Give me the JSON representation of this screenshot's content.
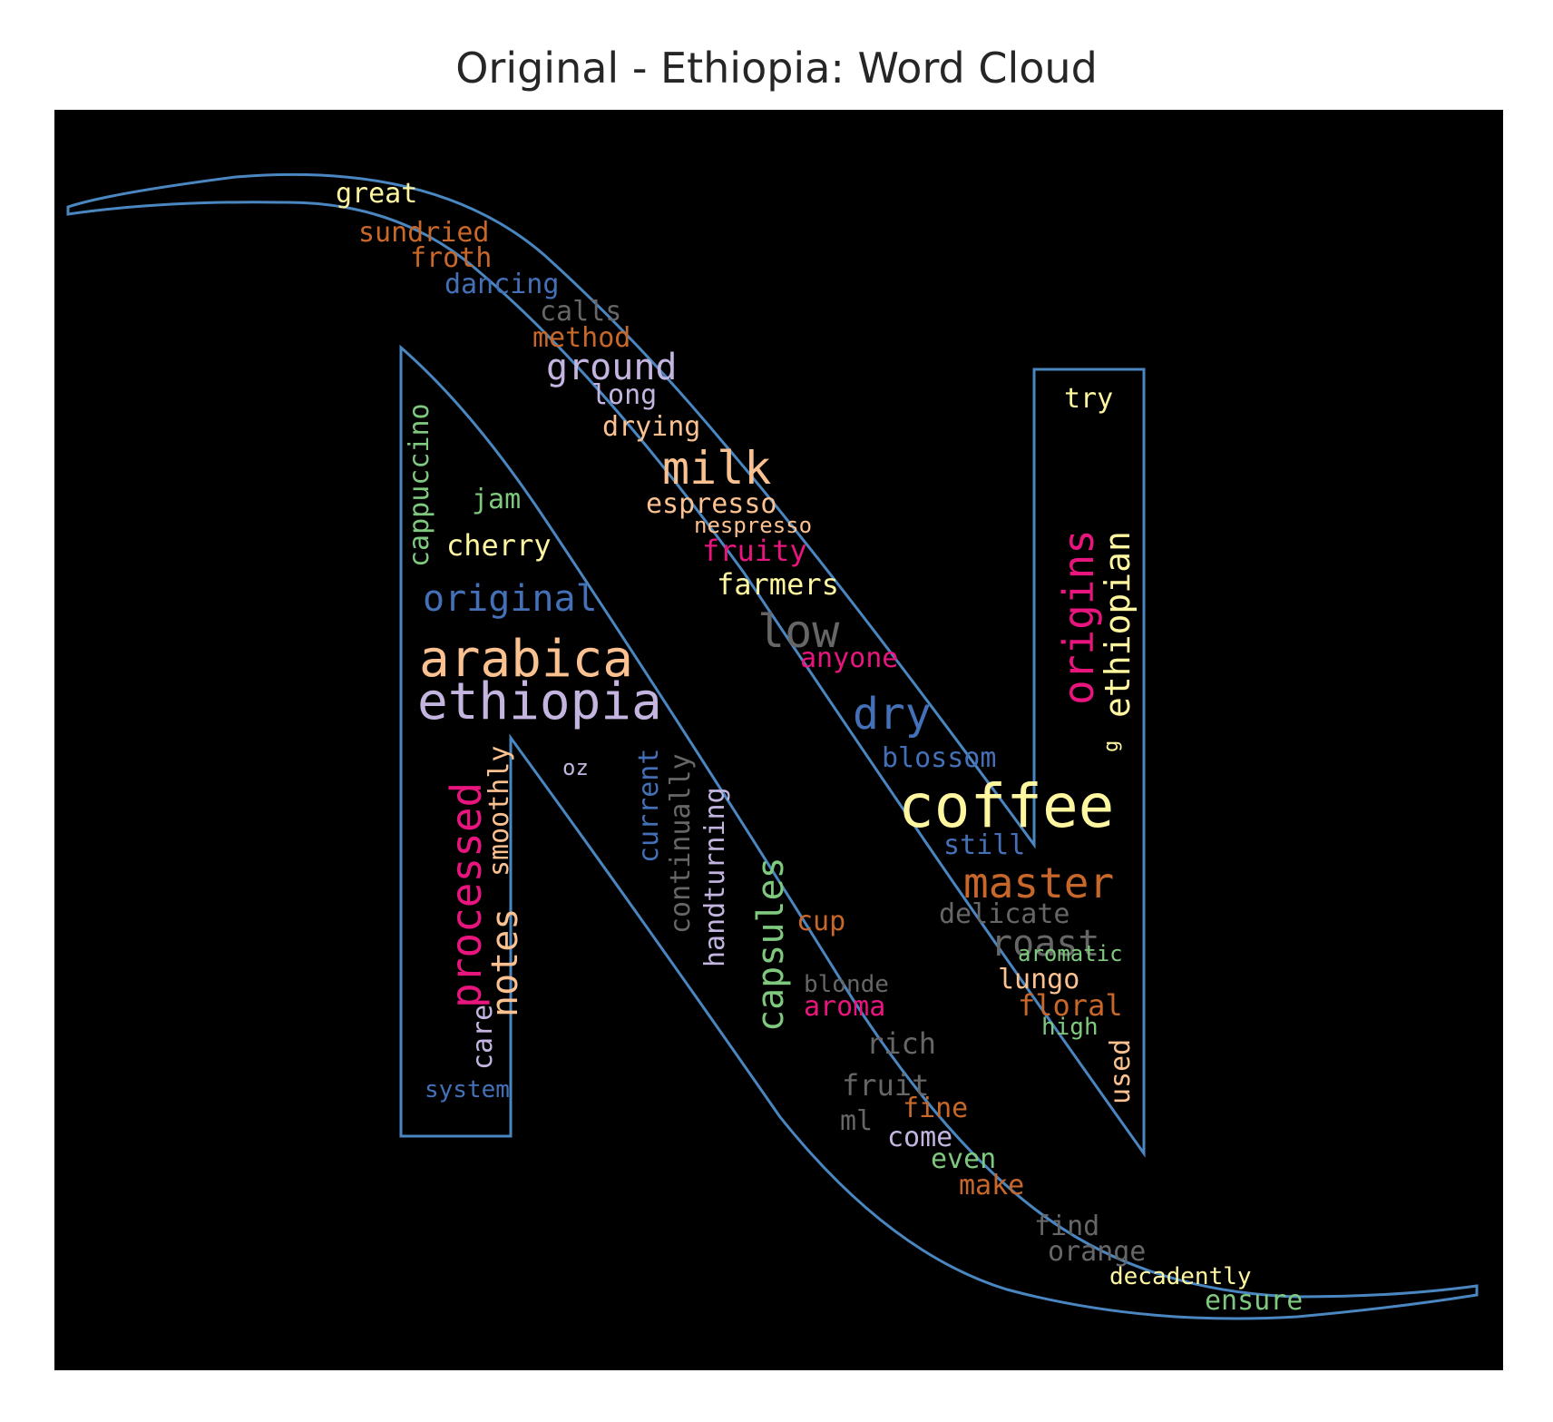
{
  "chart_data": {
    "type": "wordcloud",
    "title": "Original - Ethiopia: Word Cloud",
    "mask_shape": "N-logo",
    "mask_outline_color": "#4a86c0",
    "background_color": "#000000",
    "words": [
      {
        "text": "great",
        "color": "#fff7a0"
      },
      {
        "text": "sundried",
        "color": "#c8672a"
      },
      {
        "text": "froth",
        "color": "#c8672a"
      },
      {
        "text": "dancing",
        "color": "#4470b8"
      },
      {
        "text": "calls",
        "color": "#666666"
      },
      {
        "text": "method",
        "color": "#c8672a"
      },
      {
        "text": "ground",
        "color": "#c3b5e0"
      },
      {
        "text": "long",
        "color": "#c3b5e0"
      },
      {
        "text": "drying",
        "color": "#fbc190"
      },
      {
        "text": "milk",
        "color": "#fbc190"
      },
      {
        "text": "espresso",
        "color": "#fbc190"
      },
      {
        "text": "nespresso",
        "color": "#fbc190"
      },
      {
        "text": "fruity",
        "color": "#e8157e"
      },
      {
        "text": "farmers",
        "color": "#fff7a0"
      },
      {
        "text": "low",
        "color": "#666666"
      },
      {
        "text": "anyone",
        "color": "#e8157e"
      },
      {
        "text": "dry",
        "color": "#4470b8"
      },
      {
        "text": "blossom",
        "color": "#4470b8"
      },
      {
        "text": "coffee",
        "color": "#fff7a0"
      },
      {
        "text": "still",
        "color": "#4470b8"
      },
      {
        "text": "master",
        "color": "#c8672a"
      },
      {
        "text": "delicate",
        "color": "#666666"
      },
      {
        "text": "roast",
        "color": "#666666"
      },
      {
        "text": "aromatic",
        "color": "#7fc97f"
      },
      {
        "text": "lungo",
        "color": "#fbc190"
      },
      {
        "text": "floral",
        "color": "#c8672a"
      },
      {
        "text": "high",
        "color": "#7fc97f"
      },
      {
        "text": "try",
        "color": "#fff7a0"
      },
      {
        "text": "origins",
        "color": "#e8157e"
      },
      {
        "text": "ethiopian",
        "color": "#fff7a0"
      },
      {
        "text": "g",
        "color": "#fff7a0"
      },
      {
        "text": "used",
        "color": "#fbc190"
      },
      {
        "text": "cappuccino",
        "color": "#7fc97f"
      },
      {
        "text": "jam",
        "color": "#7fc97f"
      },
      {
        "text": "cherry",
        "color": "#fff7a0"
      },
      {
        "text": "original",
        "color": "#4470b8"
      },
      {
        "text": "arabica",
        "color": "#fbc190"
      },
      {
        "text": "ethiopia",
        "color": "#c3b5e0"
      },
      {
        "text": "processed",
        "color": "#e8157e"
      },
      {
        "text": "smoothly",
        "color": "#fbc190"
      },
      {
        "text": "notes",
        "color": "#fbc190"
      },
      {
        "text": "care",
        "color": "#c3b5e0"
      },
      {
        "text": "system",
        "color": "#4470b8"
      },
      {
        "text": "oz",
        "color": "#c3b5e0"
      },
      {
        "text": "current",
        "color": "#4470b8"
      },
      {
        "text": "continually",
        "color": "#666666"
      },
      {
        "text": "handturning",
        "color": "#c3b5e0"
      },
      {
        "text": "capsules",
        "color": "#7fc97f"
      },
      {
        "text": "cup",
        "color": "#c8672a"
      },
      {
        "text": "blonde",
        "color": "#666666"
      },
      {
        "text": "aroma",
        "color": "#e8157e"
      },
      {
        "text": "rich",
        "color": "#666666"
      },
      {
        "text": "fruit",
        "color": "#666666"
      },
      {
        "text": "fine",
        "color": "#c8672a"
      },
      {
        "text": "ml",
        "color": "#666666"
      },
      {
        "text": "come",
        "color": "#c3b5e0"
      },
      {
        "text": "even",
        "color": "#7fc97f"
      },
      {
        "text": "make",
        "color": "#c8672a"
      },
      {
        "text": "find",
        "color": "#666666"
      },
      {
        "text": "orange",
        "color": "#666666"
      },
      {
        "text": "decadently",
        "color": "#fff7a0"
      },
      {
        "text": "ensure",
        "color": "#7fc97f"
      }
    ]
  }
}
